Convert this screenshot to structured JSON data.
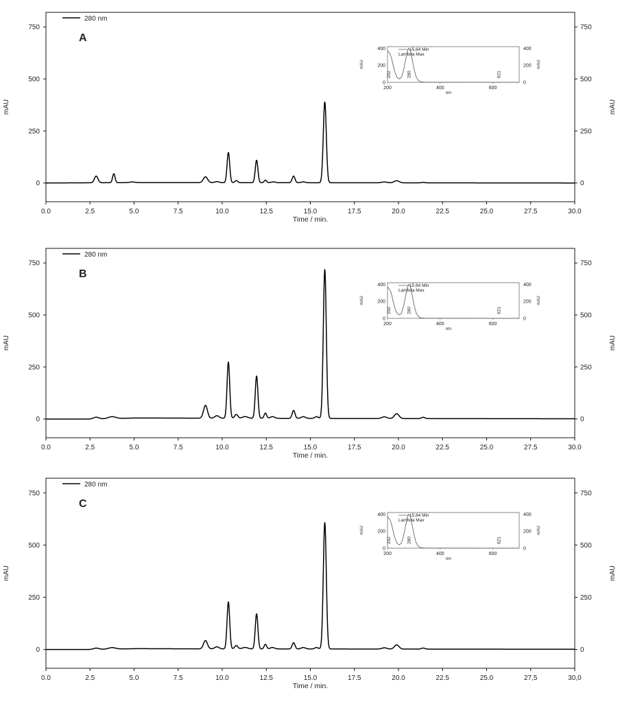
{
  "chart_data": [
    {
      "type": "line",
      "panel_label": "A",
      "xlabel": "Time / min.",
      "ylabel": "mAU",
      "y2label": "mAU",
      "legend": "280 nm",
      "xlim": [
        0,
        30
      ],
      "ylim": [
        -90,
        820
      ],
      "xticks": [
        "0.0",
        "2.5",
        "5.0",
        "7.5",
        "10.0",
        "12.5",
        "15.0",
        "17.5",
        "20.0",
        "22.5",
        "25.0",
        "27.5",
        "30.0"
      ],
      "yticks": [
        0,
        250,
        500,
        750
      ],
      "y_tick_labels": [
        "0",
        "250",
        "500",
        "750"
      ],
      "baseline_segments": [
        [
          0,
          0
        ],
        [
          5.2,
          2
        ],
        [
          30,
          0
        ]
      ],
      "peaks": [
        {
          "t": 2.85,
          "h": 32,
          "w": 0.1
        },
        {
          "t": 3.85,
          "h": 43,
          "w": 0.07
        },
        {
          "t": 4.9,
          "h": 3,
          "w": 0.15
        },
        {
          "t": 9.05,
          "h": 28,
          "w": 0.12
        },
        {
          "t": 9.7,
          "h": 5,
          "w": 0.12
        },
        {
          "t": 10.35,
          "h": 145,
          "w": 0.075
        },
        {
          "t": 10.8,
          "h": 10,
          "w": 0.08
        },
        {
          "t": 11.95,
          "h": 108,
          "w": 0.075
        },
        {
          "t": 12.45,
          "h": 12,
          "w": 0.07
        },
        {
          "t": 12.9,
          "h": 4,
          "w": 0.12
        },
        {
          "t": 14.05,
          "h": 32,
          "w": 0.08
        },
        {
          "t": 14.6,
          "h": 4,
          "w": 0.12
        },
        {
          "t": 15.82,
          "h": 388,
          "w": 0.085
        },
        {
          "t": 19.2,
          "h": 4,
          "w": 0.15
        },
        {
          "t": 19.9,
          "h": 10,
          "w": 0.14
        },
        {
          "t": 21.4,
          "h": 2,
          "w": 0.1
        }
      ],
      "inset": {
        "label": "15.84 Min",
        "sublabel": "Lambda Max",
        "xlabel": "nm",
        "ylabel": "mAU",
        "xlim": [
          200,
          700
        ],
        "ylim": [
          0,
          420
        ],
        "xticks": [
          "200",
          "400",
          "600"
        ],
        "yticks": [
          "0",
          "200",
          "400"
        ],
        "annotations": [
          "202",
          "280",
          "621"
        ],
        "spectrum": [
          [
            200,
            370
          ],
          [
            208,
            340
          ],
          [
            214,
            300
          ],
          [
            220,
            220
          ],
          [
            228,
            120
          ],
          [
            236,
            60
          ],
          [
            244,
            40
          ],
          [
            252,
            55
          ],
          [
            260,
            130
          ],
          [
            268,
            250
          ],
          [
            275,
            360
          ],
          [
            280,
            400
          ],
          [
            286,
            380
          ],
          [
            292,
            300
          ],
          [
            300,
            170
          ],
          [
            308,
            70
          ],
          [
            316,
            25
          ],
          [
            326,
            6
          ],
          [
            340,
            2
          ],
          [
            700,
            0
          ]
        ]
      }
    },
    {
      "type": "line",
      "panel_label": "B",
      "xlabel": "Time / min.",
      "ylabel": "mAU",
      "y2label": "mAU",
      "legend": "280 nm",
      "xlim": [
        0,
        30
      ],
      "ylim": [
        -90,
        820
      ],
      "xticks": [
        "0.0",
        "2.5",
        "5.0",
        "7.5",
        "10.0",
        "12.5",
        "15.0",
        "17.5",
        "20.0",
        "22.5",
        "25.0",
        "27.5",
        "30.0"
      ],
      "yticks": [
        0,
        250,
        500,
        750
      ],
      "y_tick_labels": [
        "0",
        "250",
        "500",
        "750"
      ],
      "baseline_segments": [
        [
          0,
          0
        ],
        [
          2.5,
          0
        ],
        [
          5.2,
          5
        ],
        [
          8.5,
          4
        ],
        [
          30,
          1
        ]
      ],
      "peaks": [
        {
          "t": 2.85,
          "h": 8,
          "w": 0.15
        },
        {
          "t": 3.75,
          "h": 9,
          "w": 0.2
        },
        {
          "t": 9.05,
          "h": 62,
          "w": 0.11
        },
        {
          "t": 9.7,
          "h": 12,
          "w": 0.12
        },
        {
          "t": 10.35,
          "h": 270,
          "w": 0.075
        },
        {
          "t": 10.8,
          "h": 18,
          "w": 0.09
        },
        {
          "t": 11.3,
          "h": 8,
          "w": 0.15
        },
        {
          "t": 11.95,
          "h": 203,
          "w": 0.075
        },
        {
          "t": 12.45,
          "h": 25,
          "w": 0.07
        },
        {
          "t": 12.85,
          "h": 8,
          "w": 0.12
        },
        {
          "t": 14.05,
          "h": 38,
          "w": 0.08
        },
        {
          "t": 14.6,
          "h": 8,
          "w": 0.12
        },
        {
          "t": 15.35,
          "h": 8,
          "w": 0.1
        },
        {
          "t": 15.82,
          "h": 715,
          "w": 0.085
        },
        {
          "t": 19.2,
          "h": 8,
          "w": 0.14
        },
        {
          "t": 19.9,
          "h": 23,
          "w": 0.13
        },
        {
          "t": 21.4,
          "h": 6,
          "w": 0.1
        }
      ],
      "inset": {
        "label": "15.84 Min",
        "sublabel": "Lambda Max",
        "xlabel": "nm",
        "ylabel": "mAU",
        "xlim": [
          200,
          700
        ],
        "ylim": [
          0,
          420
        ],
        "xticks": [
          "200",
          "400",
          "600"
        ],
        "yticks": [
          "0",
          "200",
          "400"
        ],
        "annotations": [
          "202",
          "280",
          "621"
        ],
        "spectrum": [
          [
            200,
            370
          ],
          [
            208,
            340
          ],
          [
            214,
            300
          ],
          [
            220,
            220
          ],
          [
            228,
            120
          ],
          [
            236,
            60
          ],
          [
            244,
            40
          ],
          [
            252,
            55
          ],
          [
            260,
            130
          ],
          [
            268,
            250
          ],
          [
            275,
            360
          ],
          [
            280,
            400
          ],
          [
            286,
            380
          ],
          [
            292,
            300
          ],
          [
            300,
            170
          ],
          [
            308,
            70
          ],
          [
            316,
            25
          ],
          [
            326,
            6
          ],
          [
            340,
            2
          ],
          [
            700,
            0
          ]
        ]
      }
    },
    {
      "type": "line",
      "panel_label": "C",
      "xlabel": "Time / min.",
      "ylabel": "mAU",
      "y2label": "mAU",
      "legend": "280 nm",
      "xlim": [
        0,
        30
      ],
      "ylim": [
        -90,
        820
      ],
      "xticks": [
        "0.0",
        "2.5",
        "5.0",
        "7.5",
        "10.0",
        "12.5",
        "15.0",
        "17.5",
        "20.0",
        "22.5",
        "25.0",
        "27,5",
        "30,0"
      ],
      "yticks": [
        0,
        250,
        500,
        750
      ],
      "y_tick_labels": [
        "0",
        "250",
        "500",
        "750"
      ],
      "baseline_segments": [
        [
          0,
          0
        ],
        [
          2.5,
          0
        ],
        [
          5.2,
          4
        ],
        [
          8.5,
          3
        ],
        [
          30,
          1
        ]
      ],
      "peaks": [
        {
          "t": 2.85,
          "h": 6,
          "w": 0.15
        },
        {
          "t": 3.75,
          "h": 7,
          "w": 0.2
        },
        {
          "t": 9.05,
          "h": 40,
          "w": 0.11
        },
        {
          "t": 9.7,
          "h": 10,
          "w": 0.12
        },
        {
          "t": 10.35,
          "h": 225,
          "w": 0.075
        },
        {
          "t": 10.8,
          "h": 16,
          "w": 0.09
        },
        {
          "t": 11.3,
          "h": 7,
          "w": 0.15
        },
        {
          "t": 11.95,
          "h": 168,
          "w": 0.075
        },
        {
          "t": 12.45,
          "h": 22,
          "w": 0.07
        },
        {
          "t": 12.85,
          "h": 7,
          "w": 0.12
        },
        {
          "t": 14.05,
          "h": 30,
          "w": 0.08
        },
        {
          "t": 14.6,
          "h": 7,
          "w": 0.12
        },
        {
          "t": 15.35,
          "h": 7,
          "w": 0.1
        },
        {
          "t": 15.82,
          "h": 605,
          "w": 0.085
        },
        {
          "t": 19.2,
          "h": 6,
          "w": 0.14
        },
        {
          "t": 19.9,
          "h": 20,
          "w": 0.13
        },
        {
          "t": 21.4,
          "h": 5,
          "w": 0.1
        }
      ],
      "inset": {
        "label": "15.84 Min",
        "sublabel": "Lambda Max",
        "xlabel": "nm",
        "ylabel": "mAU",
        "xlim": [
          200,
          700
        ],
        "ylim": [
          0,
          420
        ],
        "xticks": [
          "200",
          "400",
          "600"
        ],
        "yticks": [
          "0",
          "200",
          "400"
        ],
        "annotations": [
          "202",
          "280",
          "621"
        ],
        "spectrum": [
          [
            200,
            370
          ],
          [
            208,
            340
          ],
          [
            214,
            300
          ],
          [
            220,
            220
          ],
          [
            228,
            120
          ],
          [
            236,
            60
          ],
          [
            244,
            40
          ],
          [
            252,
            55
          ],
          [
            260,
            130
          ],
          [
            268,
            250
          ],
          [
            275,
            360
          ],
          [
            280,
            400
          ],
          [
            286,
            380
          ],
          [
            292,
            300
          ],
          [
            300,
            170
          ],
          [
            308,
            70
          ],
          [
            316,
            25
          ],
          [
            326,
            6
          ],
          [
            340,
            2
          ],
          [
            700,
            0
          ]
        ]
      }
    }
  ]
}
